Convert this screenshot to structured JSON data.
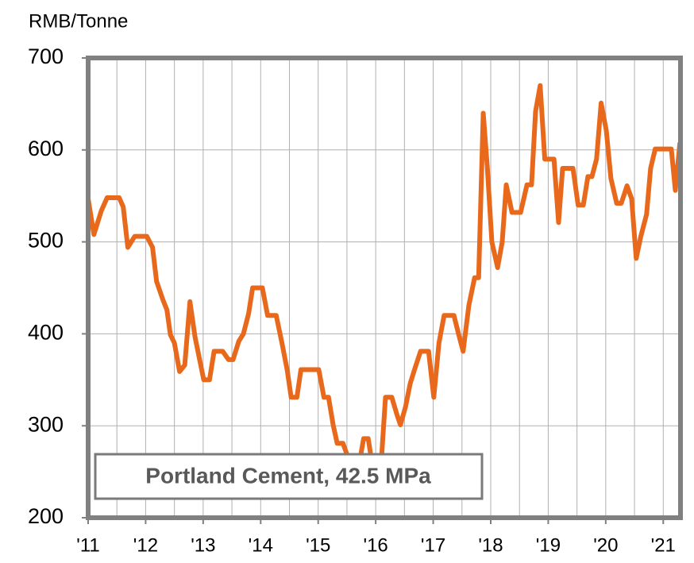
{
  "chart_data": {
    "type": "line",
    "y_axis_label": "RMB/Tonne",
    "annotation": "Portland Cement, 42.5 MPa",
    "x": [
      2011.0,
      2011.1,
      2011.23,
      2011.33,
      2011.54,
      2011.61,
      2011.69,
      2011.81,
      2012.02,
      2012.12,
      2012.19,
      2012.3,
      2012.37,
      2012.43,
      2012.5,
      2012.59,
      2012.68,
      2012.77,
      2012.86,
      2013.01,
      2013.11,
      2013.19,
      2013.34,
      2013.44,
      2013.52,
      2013.62,
      2013.7,
      2013.79,
      2013.86,
      2014.03,
      2014.12,
      2014.27,
      2014.37,
      2014.46,
      2014.53,
      2014.63,
      2014.7,
      2015.01,
      2015.1,
      2015.18,
      2015.26,
      2015.33,
      2015.43,
      2015.5,
      2015.61,
      2015.7,
      2015.79,
      2015.87,
      2015.95,
      2016.09,
      2016.17,
      2016.28,
      2016.37,
      2016.43,
      2016.52,
      2016.6,
      2016.68,
      2016.78,
      2016.92,
      2017.01,
      2017.1,
      2017.19,
      2017.36,
      2017.44,
      2017.52,
      2017.62,
      2017.72,
      2017.79,
      2017.87,
      2017.94,
      2018.02,
      2018.12,
      2018.2,
      2018.27,
      2018.37,
      2018.52,
      2018.63,
      2018.71,
      2018.78,
      2018.86,
      2018.94,
      2019.1,
      2019.18,
      2019.25,
      2019.43,
      2019.52,
      2019.61,
      2019.69,
      2019.76,
      2019.84,
      2019.92,
      2020.01,
      2020.09,
      2020.19,
      2020.27,
      2020.37,
      2020.45,
      2020.53,
      2020.61,
      2020.71,
      2020.78,
      2020.86,
      2021.14,
      2021.21,
      2021.29
    ],
    "series": [
      {
        "name": "Portland Cement, 42.5 MPa",
        "color": "#e8691b",
        "values": [
          547,
          508,
          534,
          548,
          548,
          538,
          494,
          506,
          506,
          494,
          457,
          437,
          426,
          399,
          390,
          359,
          366,
          435,
          396,
          350,
          350,
          381,
          381,
          372,
          372,
          392,
          400,
          422,
          450,
          450,
          420,
          420,
          390,
          361,
          331,
          331,
          361,
          361,
          331,
          331,
          301,
          281,
          281,
          269,
          254,
          254,
          286,
          286,
          254,
          254,
          331,
          331,
          312,
          301,
          321,
          346,
          362,
          381,
          381,
          331,
          390,
          420,
          420,
          400,
          381,
          431,
          461,
          461,
          640,
          582,
          500,
          472,
          500,
          562,
          532,
          532,
          562,
          562,
          642,
          670,
          590,
          590,
          521,
          580,
          580,
          540,
          540,
          571,
          571,
          590,
          651,
          621,
          569,
          542,
          542,
          561,
          547,
          482,
          506,
          530,
          580,
          601,
          601,
          556,
          608
        ]
      }
    ],
    "xlim": [
      2011,
      2021.3
    ],
    "xticks": [
      {
        "value": 2011,
        "label": "'11"
      },
      {
        "value": 2012,
        "label": "'12"
      },
      {
        "value": 2013,
        "label": "'13"
      },
      {
        "value": 2014,
        "label": "'14"
      },
      {
        "value": 2015,
        "label": "'15"
      },
      {
        "value": 2016,
        "label": "'16"
      },
      {
        "value": 2017,
        "label": "'17"
      },
      {
        "value": 2018,
        "label": "'18"
      },
      {
        "value": 2019,
        "label": "'19"
      },
      {
        "value": 2020,
        "label": "'20"
      },
      {
        "value": 2021,
        "label": "'21"
      }
    ],
    "x_minor_ticks": [
      2011.5,
      2012.5,
      2013.5,
      2014.5,
      2015.5,
      2016.5,
      2017.5,
      2018.5,
      2019.5,
      2020.5
    ],
    "ylim": [
      200,
      700
    ],
    "yticks": [
      200,
      300,
      400,
      500,
      600,
      700
    ],
    "grid": true
  }
}
